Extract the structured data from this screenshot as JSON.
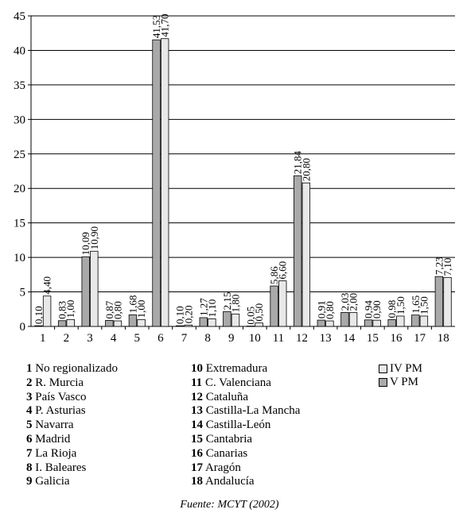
{
  "chart_data": {
    "type": "bar",
    "categories": [
      "1",
      "2",
      "3",
      "4",
      "5",
      "6",
      "7",
      "8",
      "9",
      "10",
      "11",
      "12",
      "13",
      "14",
      "15",
      "16",
      "17",
      "18"
    ],
    "series": [
      {
        "name": "V PM",
        "color": "#a9a9a9",
        "values": [
          0.1,
          0.83,
          10.09,
          0.87,
          1.68,
          41.53,
          0.1,
          1.27,
          2.15,
          0.05,
          5.86,
          21.84,
          0.91,
          2.03,
          0.94,
          0.98,
          1.65,
          7.23
        ],
        "labels": [
          "0,10",
          "0,83",
          "10,09",
          "0,87",
          "1,68",
          "41,53",
          "0,10",
          "1,27",
          "2,15",
          "0,05",
          "5,86",
          "21,84",
          "0,91",
          "2,03",
          "0,94",
          "0,98",
          "1,65",
          "7,23"
        ]
      },
      {
        "name": "IV PM",
        "color": "#e8e8e8",
        "values": [
          4.4,
          1.0,
          10.9,
          0.8,
          1.0,
          41.7,
          0.2,
          1.1,
          1.8,
          0.5,
          6.6,
          20.8,
          0.8,
          2.0,
          0.9,
          1.5,
          1.5,
          7.1
        ],
        "labels": [
          "4,40",
          "1,00",
          "10,90",
          "0,80",
          "1,00",
          "41,70",
          "0,20",
          "1,10",
          "1,80",
          "0,50",
          "6,60",
          "20,80",
          "0,80",
          "2,00",
          "0,90",
          "1,50",
          "1,50",
          "7,10"
        ]
      }
    ],
    "ylim": [
      0,
      45
    ],
    "yticks": [
      0,
      5,
      10,
      15,
      20,
      25,
      30,
      35,
      40,
      45
    ],
    "grid": true,
    "legend_position": "right"
  },
  "legend": {
    "series": [
      {
        "label": "IV PM",
        "color": "#e8e8e8"
      },
      {
        "label": "V PM",
        "color": "#a9a9a9"
      }
    ]
  },
  "regions": [
    {
      "num": "1",
      "name": "No regionalizado"
    },
    {
      "num": "2",
      "name": "R. Murcia"
    },
    {
      "num": "3",
      "name": "País Vasco"
    },
    {
      "num": "4",
      "name": "P. Asturias"
    },
    {
      "num": "5",
      "name": "Navarra"
    },
    {
      "num": "6",
      "name": "Madrid"
    },
    {
      "num": "7",
      "name": "La Rioja"
    },
    {
      "num": "8",
      "name": "I. Baleares"
    },
    {
      "num": "9",
      "name": "Galicia"
    },
    {
      "num": "10",
      "name": "Extremadura"
    },
    {
      "num": "11",
      "name": "C. Valenciana"
    },
    {
      "num": "12",
      "name": "Cataluña"
    },
    {
      "num": "13",
      "name": "Castilla-La Mancha"
    },
    {
      "num": "14",
      "name": "Castilla-León"
    },
    {
      "num": "15",
      "name": "Cantabria"
    },
    {
      "num": "16",
      "name": "Canarias"
    },
    {
      "num": "17",
      "name": "Aragón"
    },
    {
      "num": "18",
      "name": "Andalucía"
    }
  ],
  "source": "Fuente: MCYT (2002)"
}
